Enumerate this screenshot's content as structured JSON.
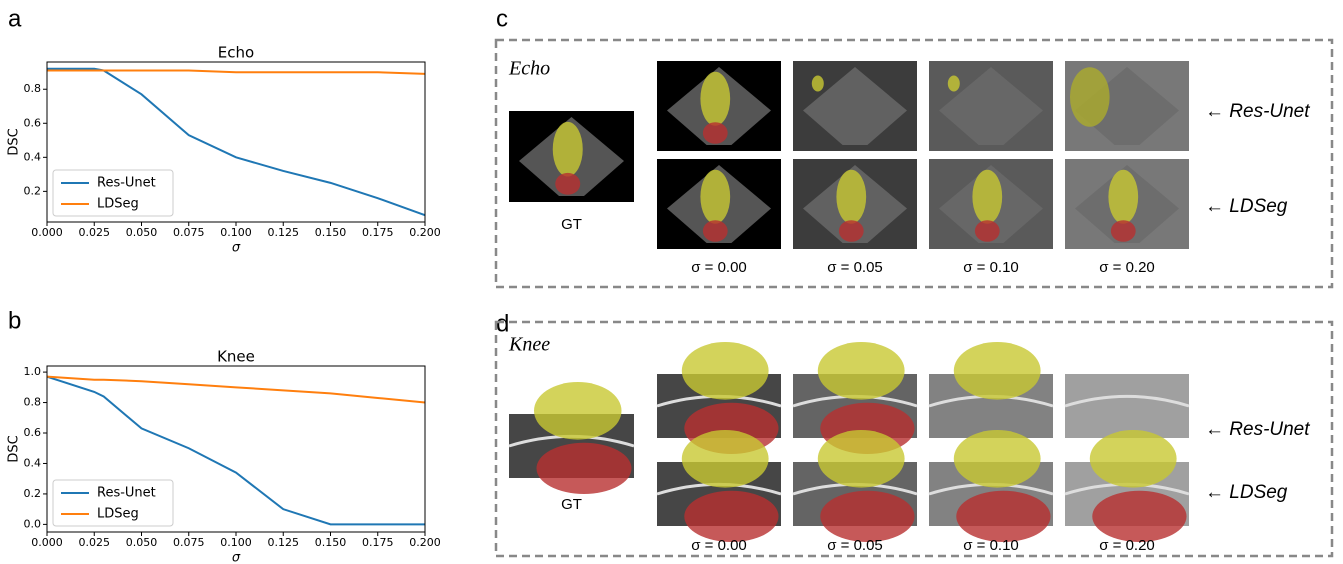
{
  "panel_labels": [
    "a",
    "b",
    "c",
    "d"
  ],
  "chart_data": [
    {
      "type": "line",
      "title": "Echo",
      "x_label": "σ",
      "y_label": "DSC",
      "x": [
        0,
        0.025,
        0.03,
        0.05,
        0.075,
        0.1,
        0.125,
        0.15,
        0.175,
        0.2
      ],
      "series": [
        {
          "name": "Res-Unet",
          "color": "#1f77b4",
          "values": [
            0.92,
            0.92,
            0.91,
            0.77,
            0.53,
            0.4,
            0.32,
            0.25,
            0.16,
            0.06
          ]
        },
        {
          "name": "LDSeg",
          "color": "#ff7f0e",
          "values": [
            0.91,
            0.91,
            0.91,
            0.91,
            0.91,
            0.9,
            0.9,
            0.9,
            0.9,
            0.89
          ]
        }
      ],
      "xlim": [
        0,
        0.2
      ],
      "ylim": [
        0.02,
        0.96
      ],
      "xticks": [
        {
          "value": 0,
          "label": "0.000"
        },
        {
          "value": 0.025,
          "label": "0.025"
        },
        {
          "value": 0.05,
          "label": "0.050"
        },
        {
          "value": 0.075,
          "label": "0.075"
        },
        {
          "value": 0.1,
          "label": "0.100"
        },
        {
          "value": 0.125,
          "label": "0.125"
        },
        {
          "value": 0.15,
          "label": "0.150"
        },
        {
          "value": 0.175,
          "label": "0.175"
        },
        {
          "value": 0.2,
          "label": "0.200"
        }
      ],
      "yticks": [
        0.2,
        0.4,
        0.6,
        0.8
      ],
      "legend": "lower left"
    },
    {
      "type": "line",
      "title": "Knee",
      "x_label": "σ",
      "y_label": "DSC",
      "x": [
        0,
        0.025,
        0.03,
        0.05,
        0.075,
        0.1,
        0.125,
        0.15,
        0.175,
        0.2
      ],
      "series": [
        {
          "name": "Res-Unet",
          "color": "#1f77b4",
          "values": [
            0.97,
            0.87,
            0.84,
            0.63,
            0.5,
            0.34,
            0.1,
            0.0,
            0.0,
            0.0
          ]
        },
        {
          "name": "LDSeg",
          "color": "#ff7f0e",
          "values": [
            0.97,
            0.95,
            0.95,
            0.94,
            0.92,
            0.9,
            0.88,
            0.86,
            0.83,
            0.8
          ]
        }
      ],
      "xlim": [
        0,
        0.2
      ],
      "ylim": [
        -0.05,
        1.04
      ],
      "xticks": [
        {
          "value": 0,
          "label": "0.000"
        },
        {
          "value": 0.025,
          "label": "0.025"
        },
        {
          "value": 0.05,
          "label": "0.050"
        },
        {
          "value": 0.075,
          "label": "0.075"
        },
        {
          "value": 0.1,
          "label": "0.100"
        },
        {
          "value": 0.125,
          "label": "0.125"
        },
        {
          "value": 0.15,
          "label": "0.150"
        },
        {
          "value": 0.175,
          "label": "0.175"
        },
        {
          "value": 0.2,
          "label": "0.200"
        }
      ],
      "yticks": [
        {
          "value": 0,
          "label": "0.0"
        },
        0.2,
        0.4,
        0.6,
        0.8,
        {
          "value": 1,
          "label": "1.0"
        }
      ],
      "legend": "lower left"
    }
  ],
  "image_panels": [
    {
      "title": "Echo",
      "gt_label": "GT",
      "sigma_labels": [
        "σ = 0.00",
        "σ = 0.05",
        "σ = 0.10",
        "σ = 0.20"
      ],
      "row_labels": [
        "← Res-Unet",
        "← LDSeg"
      ]
    },
    {
      "title": "Knee",
      "gt_label": "GT",
      "sigma_labels": [
        "σ = 0.00",
        "σ = 0.05",
        "σ = 0.10",
        "σ = 0.20"
      ],
      "row_labels": [
        "← Res-Unet",
        "← LDSeg"
      ]
    }
  ]
}
